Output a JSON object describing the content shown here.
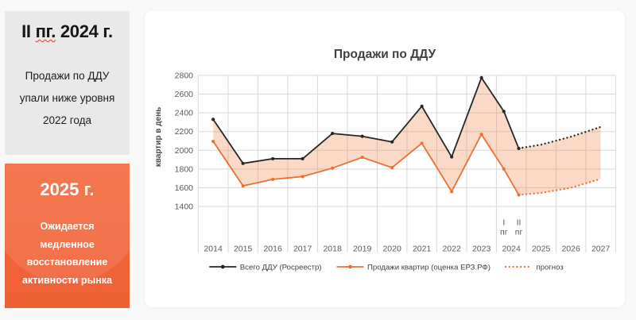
{
  "left_panels": {
    "panel_2024": {
      "title_prefix": "II ",
      "title_misspelled": "пг.",
      "title_suffix": " 2024 г.",
      "body": "Продажи по ДДУ\nупали ниже уровня\n2022 года"
    },
    "panel_2025": {
      "title": "2025 г.",
      "body": "Ожидается\nмедленное\nвосстановление\nактивности рынка"
    }
  },
  "chart_data": {
    "type": "line",
    "title": "Продажи по ДДУ",
    "ylabel": "квартир в день",
    "ylim": [
      1400,
      2800
    ],
    "ytick_step": 200,
    "yticks": [
      2800,
      2600,
      2400,
      2200,
      2000,
      1800,
      1600,
      1400
    ],
    "grid": true,
    "legend_position": "bottom",
    "categories": [
      "2014",
      "2015",
      "2016",
      "2017",
      "2018",
      "2019",
      "2020",
      "2021",
      "2022",
      "2023",
      "2024",
      "2025",
      "2026",
      "2027"
    ],
    "subcategories_2024": [
      {
        "label": "I пг",
        "unit": 10.25
      },
      {
        "label": "II пг",
        "unit": 10.75
      }
    ],
    "x_units": [
      0.5,
      1.5,
      2.5,
      3.5,
      4.5,
      5.5,
      6.5,
      7.5,
      8.5,
      9.5,
      10.25,
      10.75
    ],
    "forecast_x_units": [
      11.5,
      12.5,
      13.5
    ],
    "series": [
      {
        "name": "Всего ДДУ (Росреестр)",
        "color": "#262626",
        "values": [
          2330,
          1860,
          1910,
          1910,
          2180,
          2150,
          2090,
          2470,
          1930,
          2775,
          2415,
          2020
        ],
        "forecast_values": [
          2060,
          2145,
          2250
        ]
      },
      {
        "name": "Продажи квартир (оценка ЕРЗ.РФ)",
        "color": "#e97132",
        "values": [
          2095,
          1620,
          1690,
          1720,
          1810,
          1925,
          1815,
          2075,
          1560,
          2170,
          1800,
          1525
        ],
        "forecast_values": [
          1545,
          1600,
          1695
        ]
      }
    ],
    "forecast_label": "прогноз",
    "fill_color": "rgba(236,120,45,0.27)",
    "grid_color": "#d9d9d9",
    "axis_text_color": "#595959",
    "title_color": "#404040",
    "legend_text_color": "#404040"
  }
}
